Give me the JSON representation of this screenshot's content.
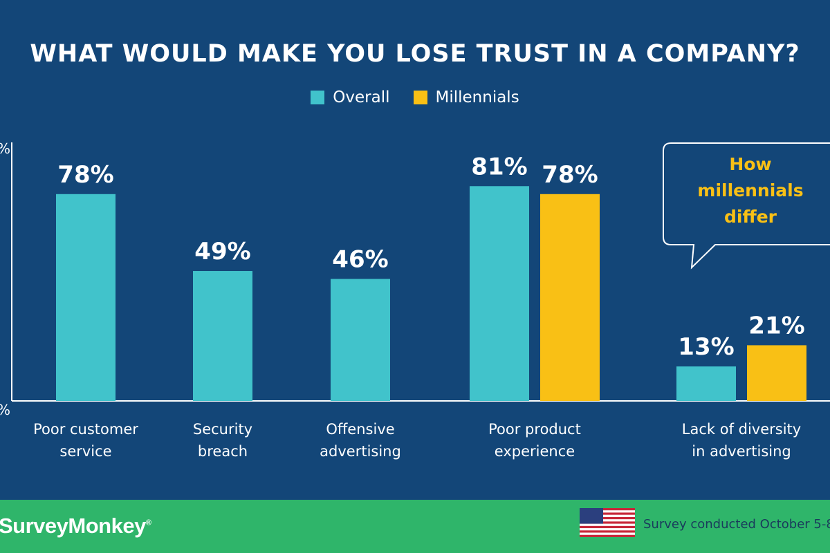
{
  "chart_data": {
    "type": "bar",
    "title": "WHAT WOULD MAKE YOU LOSE TRUST IN A COMPANY?",
    "categories": [
      [
        "Poor customer",
        "service"
      ],
      [
        "Security",
        "breach"
      ],
      [
        "Offensive",
        "advertising"
      ],
      [
        "Poor product",
        "experience"
      ],
      [
        "Lack of diversity",
        "in advertising"
      ]
    ],
    "series": [
      {
        "name": "Overall",
        "color": "#41c3cb",
        "values": [
          78,
          49,
          46,
          81,
          13
        ]
      },
      {
        "name": "Millennials",
        "color": "#f9c015",
        "values": [
          null,
          null,
          null,
          78,
          21
        ]
      }
    ],
    "value_suffix": "%",
    "ylim": [
      0,
      100
    ],
    "axis_tick_fragments": [
      "%",
      "%"
    ],
    "legend_position": "top-center",
    "grid": false,
    "annotation": {
      "lines": [
        "How",
        "millennials",
        "differ"
      ],
      "color": "#f9c015"
    }
  },
  "footer": {
    "brand": "SurveyMonkey",
    "brand_mark": "®",
    "survey_note": "Survey conducted October 5-8",
    "flag_icon": "us-flag-icon"
  },
  "colors": {
    "background": "#134678",
    "footer": "#2fb56a",
    "overall": "#41c3cb",
    "millennials": "#f9c015"
  }
}
